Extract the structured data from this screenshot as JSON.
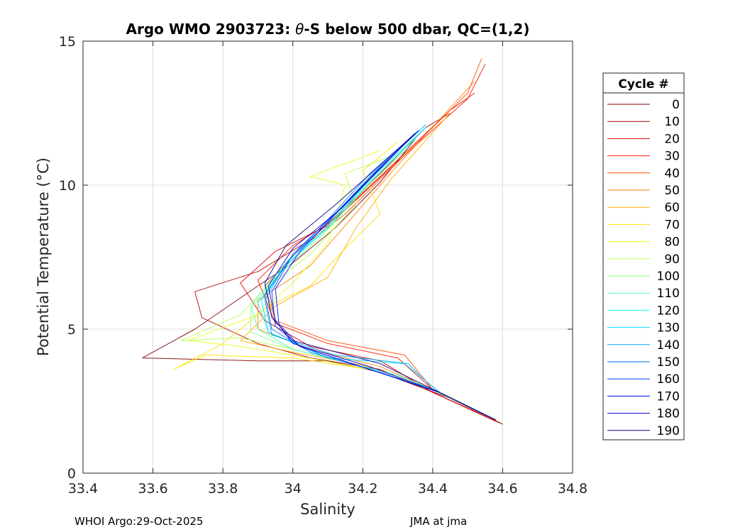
{
  "chart_data": {
    "type": "line",
    "title": "Argo WMO 2903723: θ-S below 500 dbar,  QC=(1,2)",
    "title_prefix": "Argo WMO 2903723: ",
    "title_symbol": "θ",
    "title_suffix": "-S below 500 dbar,  QC=(1,2)",
    "xlabel": "Salinity",
    "ylabel": "Potential Temperature (°C)",
    "xlim": [
      33.4,
      34.8
    ],
    "ylim": [
      0,
      15
    ],
    "xticks": [
      33.4,
      33.6,
      33.8,
      34,
      34.2,
      34.4,
      34.6,
      34.8
    ],
    "xtick_labels": [
      "33.4",
      "33.6",
      "33.8",
      "34",
      "34.2",
      "34.4",
      "34.6",
      "34.8"
    ],
    "yticks": [
      0,
      5,
      10,
      15
    ],
    "ytick_labels": [
      "0",
      "5",
      "10",
      "15"
    ],
    "grid": true,
    "legend": {
      "title": "Cycle #",
      "location": "outside-right",
      "entries": [
        {
          "label": "0",
          "color": "#7f0000"
        },
        {
          "label": "10",
          "color": "#b30000"
        },
        {
          "label": "20",
          "color": "#e00000"
        },
        {
          "label": "30",
          "color": "#ff1a00"
        },
        {
          "label": "40",
          "color": "#ff4d00"
        },
        {
          "label": "50",
          "color": "#ff8000"
        },
        {
          "label": "60",
          "color": "#ffb000"
        },
        {
          "label": "70",
          "color": "#ffe000"
        },
        {
          "label": "80",
          "color": "#e6ff1a"
        },
        {
          "label": "90",
          "color": "#b3ff4d"
        },
        {
          "label": "100",
          "color": "#80ff80"
        },
        {
          "label": "110",
          "color": "#4dffb3"
        },
        {
          "label": "120",
          "color": "#1affe6"
        },
        {
          "label": "130",
          "color": "#00d9ff"
        },
        {
          "label": "140",
          "color": "#00a6ff"
        },
        {
          "label": "150",
          "color": "#0073ff"
        },
        {
          "label": "160",
          "color": "#0040ff"
        },
        {
          "label": "170",
          "color": "#000dff"
        },
        {
          "label": "180",
          "color": "#0000c8"
        },
        {
          "label": "190",
          "color": "#00008f"
        }
      ]
    },
    "series": [
      {
        "name": "0",
        "color": "#7f0000",
        "points": [
          [
            34.6,
            1.7
          ],
          [
            34.45,
            2.6
          ],
          [
            34.25,
            3.5
          ],
          [
            34.1,
            3.9
          ],
          [
            33.9,
            3.9
          ],
          [
            33.57,
            4.0
          ],
          [
            33.72,
            5.0
          ],
          [
            33.9,
            6.5
          ],
          [
            34.0,
            7.3
          ],
          [
            34.12,
            8.5
          ],
          [
            34.25,
            10.1
          ],
          [
            34.35,
            11.6
          ]
        ]
      },
      {
        "name": "10",
        "color": "#b30000",
        "points": [
          [
            34.59,
            1.75
          ],
          [
            34.42,
            2.7
          ],
          [
            34.25,
            3.6
          ],
          [
            34.05,
            4.0
          ],
          [
            33.9,
            4.5
          ],
          [
            33.74,
            5.4
          ],
          [
            33.72,
            6.3
          ],
          [
            33.9,
            7.0
          ],
          [
            34.05,
            8.1
          ],
          [
            34.2,
            9.8
          ],
          [
            34.38,
            12.0
          ],
          [
            34.45,
            12.5
          ]
        ]
      },
      {
        "name": "20",
        "color": "#e00000",
        "points": [
          [
            34.58,
            1.8
          ],
          [
            34.4,
            2.8
          ],
          [
            34.25,
            3.9
          ],
          [
            34.05,
            4.4
          ],
          [
            33.92,
            5.3
          ],
          [
            33.85,
            6.6
          ],
          [
            33.95,
            7.7
          ],
          [
            34.1,
            8.6
          ],
          [
            34.25,
            10.3
          ],
          [
            34.45,
            12.6
          ],
          [
            34.52,
            13.2
          ]
        ]
      },
      {
        "name": "30",
        "color": "#ff1a00",
        "points": [
          [
            34.58,
            1.8
          ],
          [
            34.4,
            2.9
          ],
          [
            34.3,
            4.0
          ],
          [
            34.1,
            4.5
          ],
          [
            33.95,
            5.2
          ],
          [
            33.9,
            6.7
          ],
          [
            34.0,
            7.9
          ],
          [
            34.12,
            8.8
          ],
          [
            34.28,
            10.6
          ],
          [
            34.5,
            13.0
          ],
          [
            34.55,
            14.2
          ]
        ]
      },
      {
        "name": "40",
        "color": "#ff4d00",
        "points": [
          [
            34.58,
            1.85
          ],
          [
            34.4,
            2.9
          ],
          [
            34.32,
            4.1
          ],
          [
            34.1,
            4.6
          ],
          [
            33.95,
            5.3
          ],
          [
            33.92,
            6.5
          ],
          [
            34.02,
            7.8
          ],
          [
            34.15,
            9.0
          ],
          [
            34.3,
            10.8
          ],
          [
            34.5,
            13.2
          ],
          [
            34.54,
            14.4
          ]
        ]
      },
      {
        "name": "50",
        "color": "#ff8000",
        "points": [
          [
            34.58,
            1.85
          ],
          [
            34.4,
            2.9
          ],
          [
            34.25,
            3.7
          ],
          [
            34.05,
            4.3
          ],
          [
            33.9,
            5.0
          ],
          [
            33.9,
            6.0
          ],
          [
            34.05,
            7.2
          ],
          [
            34.15,
            8.6
          ],
          [
            34.3,
            10.7
          ],
          [
            34.52,
            13.6
          ]
        ]
      },
      {
        "name": "60",
        "color": "#ffb000",
        "points": [
          [
            34.57,
            1.9
          ],
          [
            34.4,
            2.9
          ],
          [
            34.22,
            3.7
          ],
          [
            34.0,
            4.2
          ],
          [
            33.85,
            4.6
          ],
          [
            33.95,
            5.8
          ],
          [
            34.1,
            6.8
          ],
          [
            34.18,
            8.5
          ],
          [
            34.28,
            10.2
          ],
          [
            34.45,
            12.5
          ]
        ]
      },
      {
        "name": "70",
        "color": "#ffe000",
        "points": [
          [
            34.57,
            1.9
          ],
          [
            34.4,
            2.9
          ],
          [
            34.22,
            3.6
          ],
          [
            34.0,
            4.0
          ],
          [
            33.75,
            4.1
          ],
          [
            33.66,
            3.6
          ],
          [
            33.8,
            4.5
          ],
          [
            33.93,
            5.8
          ],
          [
            34.05,
            6.5
          ],
          [
            34.15,
            7.8
          ],
          [
            34.25,
            9.0
          ],
          [
            34.2,
            10.5
          ],
          [
            34.3,
            11.5
          ]
        ]
      },
      {
        "name": "80",
        "color": "#e6ff1a",
        "points": [
          [
            34.57,
            1.9
          ],
          [
            34.4,
            2.9
          ],
          [
            34.22,
            3.6
          ],
          [
            34.0,
            4.1
          ],
          [
            33.85,
            4.4
          ],
          [
            33.7,
            4.6
          ],
          [
            33.9,
            5.5
          ],
          [
            34.0,
            6.6
          ],
          [
            34.1,
            8.0
          ],
          [
            34.15,
            10.0
          ],
          [
            34.05,
            10.3
          ],
          [
            34.25,
            11.2
          ]
        ]
      },
      {
        "name": "90",
        "color": "#b3ff4d",
        "points": [
          [
            34.57,
            1.9
          ],
          [
            34.4,
            2.9
          ],
          [
            34.2,
            3.7
          ],
          [
            34.0,
            4.3
          ],
          [
            33.85,
            4.7
          ],
          [
            33.68,
            4.6
          ],
          [
            33.85,
            5.5
          ],
          [
            33.92,
            6.4
          ],
          [
            34.05,
            7.6
          ],
          [
            34.18,
            9.3
          ],
          [
            34.15,
            10.4
          ],
          [
            34.28,
            11.0
          ]
        ]
      },
      {
        "name": "100",
        "color": "#80ff80",
        "points": [
          [
            34.57,
            1.9
          ],
          [
            34.4,
            2.9
          ],
          [
            34.2,
            3.7
          ],
          [
            34.0,
            4.3
          ],
          [
            33.88,
            4.9
          ],
          [
            33.88,
            5.7
          ],
          [
            33.95,
            6.8
          ],
          [
            34.08,
            8.2
          ],
          [
            34.2,
            9.8
          ],
          [
            34.32,
            11.2
          ]
        ]
      },
      {
        "name": "110",
        "color": "#4dffb3",
        "points": [
          [
            34.57,
            1.9
          ],
          [
            34.4,
            2.9
          ],
          [
            34.2,
            3.7
          ],
          [
            34.0,
            4.3
          ],
          [
            33.9,
            5.0
          ],
          [
            33.88,
            5.8
          ],
          [
            33.95,
            6.9
          ],
          [
            34.08,
            8.3
          ],
          [
            34.2,
            9.9
          ],
          [
            34.35,
            11.6
          ]
        ]
      },
      {
        "name": "120",
        "color": "#1affe6",
        "points": [
          [
            34.57,
            1.9
          ],
          [
            34.42,
            2.8
          ],
          [
            34.3,
            3.4
          ],
          [
            34.1,
            4.0
          ],
          [
            33.93,
            4.9
          ],
          [
            33.9,
            5.9
          ],
          [
            33.97,
            7.1
          ],
          [
            34.1,
            8.5
          ],
          [
            34.22,
            10.1
          ],
          [
            34.38,
            12.0
          ]
        ]
      },
      {
        "name": "130",
        "color": "#00d9ff",
        "points": [
          [
            34.57,
            1.9
          ],
          [
            34.42,
            2.8
          ],
          [
            34.36,
            3.4
          ],
          [
            34.32,
            3.8
          ],
          [
            34.1,
            4.0
          ],
          [
            33.93,
            4.9
          ],
          [
            33.91,
            6.0
          ],
          [
            33.98,
            7.2
          ],
          [
            34.1,
            8.6
          ],
          [
            34.22,
            10.2
          ],
          [
            34.38,
            12.0
          ]
        ]
      },
      {
        "name": "140",
        "color": "#00a6ff",
        "points": [
          [
            34.57,
            1.9
          ],
          [
            34.42,
            2.8
          ],
          [
            34.37,
            3.3
          ],
          [
            34.33,
            3.8
          ],
          [
            34.12,
            4.1
          ],
          [
            33.94,
            4.8
          ],
          [
            33.92,
            6.0
          ],
          [
            33.98,
            7.3
          ],
          [
            34.1,
            8.7
          ],
          [
            34.22,
            10.3
          ],
          [
            34.38,
            12.1
          ]
        ]
      },
      {
        "name": "150",
        "color": "#0073ff",
        "points": [
          [
            34.57,
            1.9
          ],
          [
            34.42,
            2.8
          ],
          [
            34.25,
            3.5
          ],
          [
            34.05,
            4.2
          ],
          [
            33.94,
            5.0
          ],
          [
            33.92,
            6.2
          ],
          [
            33.99,
            7.4
          ],
          [
            34.1,
            8.8
          ],
          [
            34.22,
            10.4
          ],
          [
            34.36,
            11.9
          ]
        ]
      },
      {
        "name": "160",
        "color": "#0040ff",
        "points": [
          [
            34.58,
            1.85
          ],
          [
            34.42,
            2.8
          ],
          [
            34.22,
            3.6
          ],
          [
            34.02,
            4.4
          ],
          [
            33.95,
            5.1
          ],
          [
            33.94,
            6.3
          ],
          [
            34.0,
            7.6
          ],
          [
            34.12,
            9.0
          ],
          [
            34.24,
            10.5
          ],
          [
            34.35,
            11.8
          ]
        ]
      },
      {
        "name": "170",
        "color": "#000dff",
        "points": [
          [
            34.58,
            1.85
          ],
          [
            34.42,
            2.8
          ],
          [
            34.22,
            3.6
          ],
          [
            34.02,
            4.4
          ],
          [
            33.96,
            5.2
          ],
          [
            33.95,
            6.4
          ],
          [
            34.02,
            7.7
          ],
          [
            34.13,
            9.1
          ],
          [
            34.25,
            10.6
          ],
          [
            34.36,
            11.9
          ]
        ]
      },
      {
        "name": "180",
        "color": "#0000c8",
        "points": [
          [
            34.58,
            1.85
          ],
          [
            34.42,
            2.8
          ],
          [
            34.22,
            3.7
          ],
          [
            34.0,
            4.5
          ],
          [
            33.95,
            5.3
          ],
          [
            33.93,
            6.5
          ],
          [
            34.0,
            7.8
          ],
          [
            34.14,
            9.2
          ],
          [
            34.26,
            10.7
          ],
          [
            34.35,
            11.8
          ]
        ]
      },
      {
        "name": "190",
        "color": "#00008f",
        "points": [
          [
            34.58,
            1.85
          ],
          [
            34.42,
            2.8
          ],
          [
            34.25,
            3.8
          ],
          [
            34.0,
            4.6
          ],
          [
            33.94,
            5.4
          ],
          [
            33.92,
            6.6
          ],
          [
            33.98,
            7.9
          ],
          [
            34.12,
            9.3
          ],
          [
            34.26,
            10.8
          ],
          [
            34.35,
            11.8
          ]
        ]
      }
    ]
  },
  "footer": {
    "left": "WHOI Argo:29-Oct-2025",
    "right": "JMA at jma"
  }
}
